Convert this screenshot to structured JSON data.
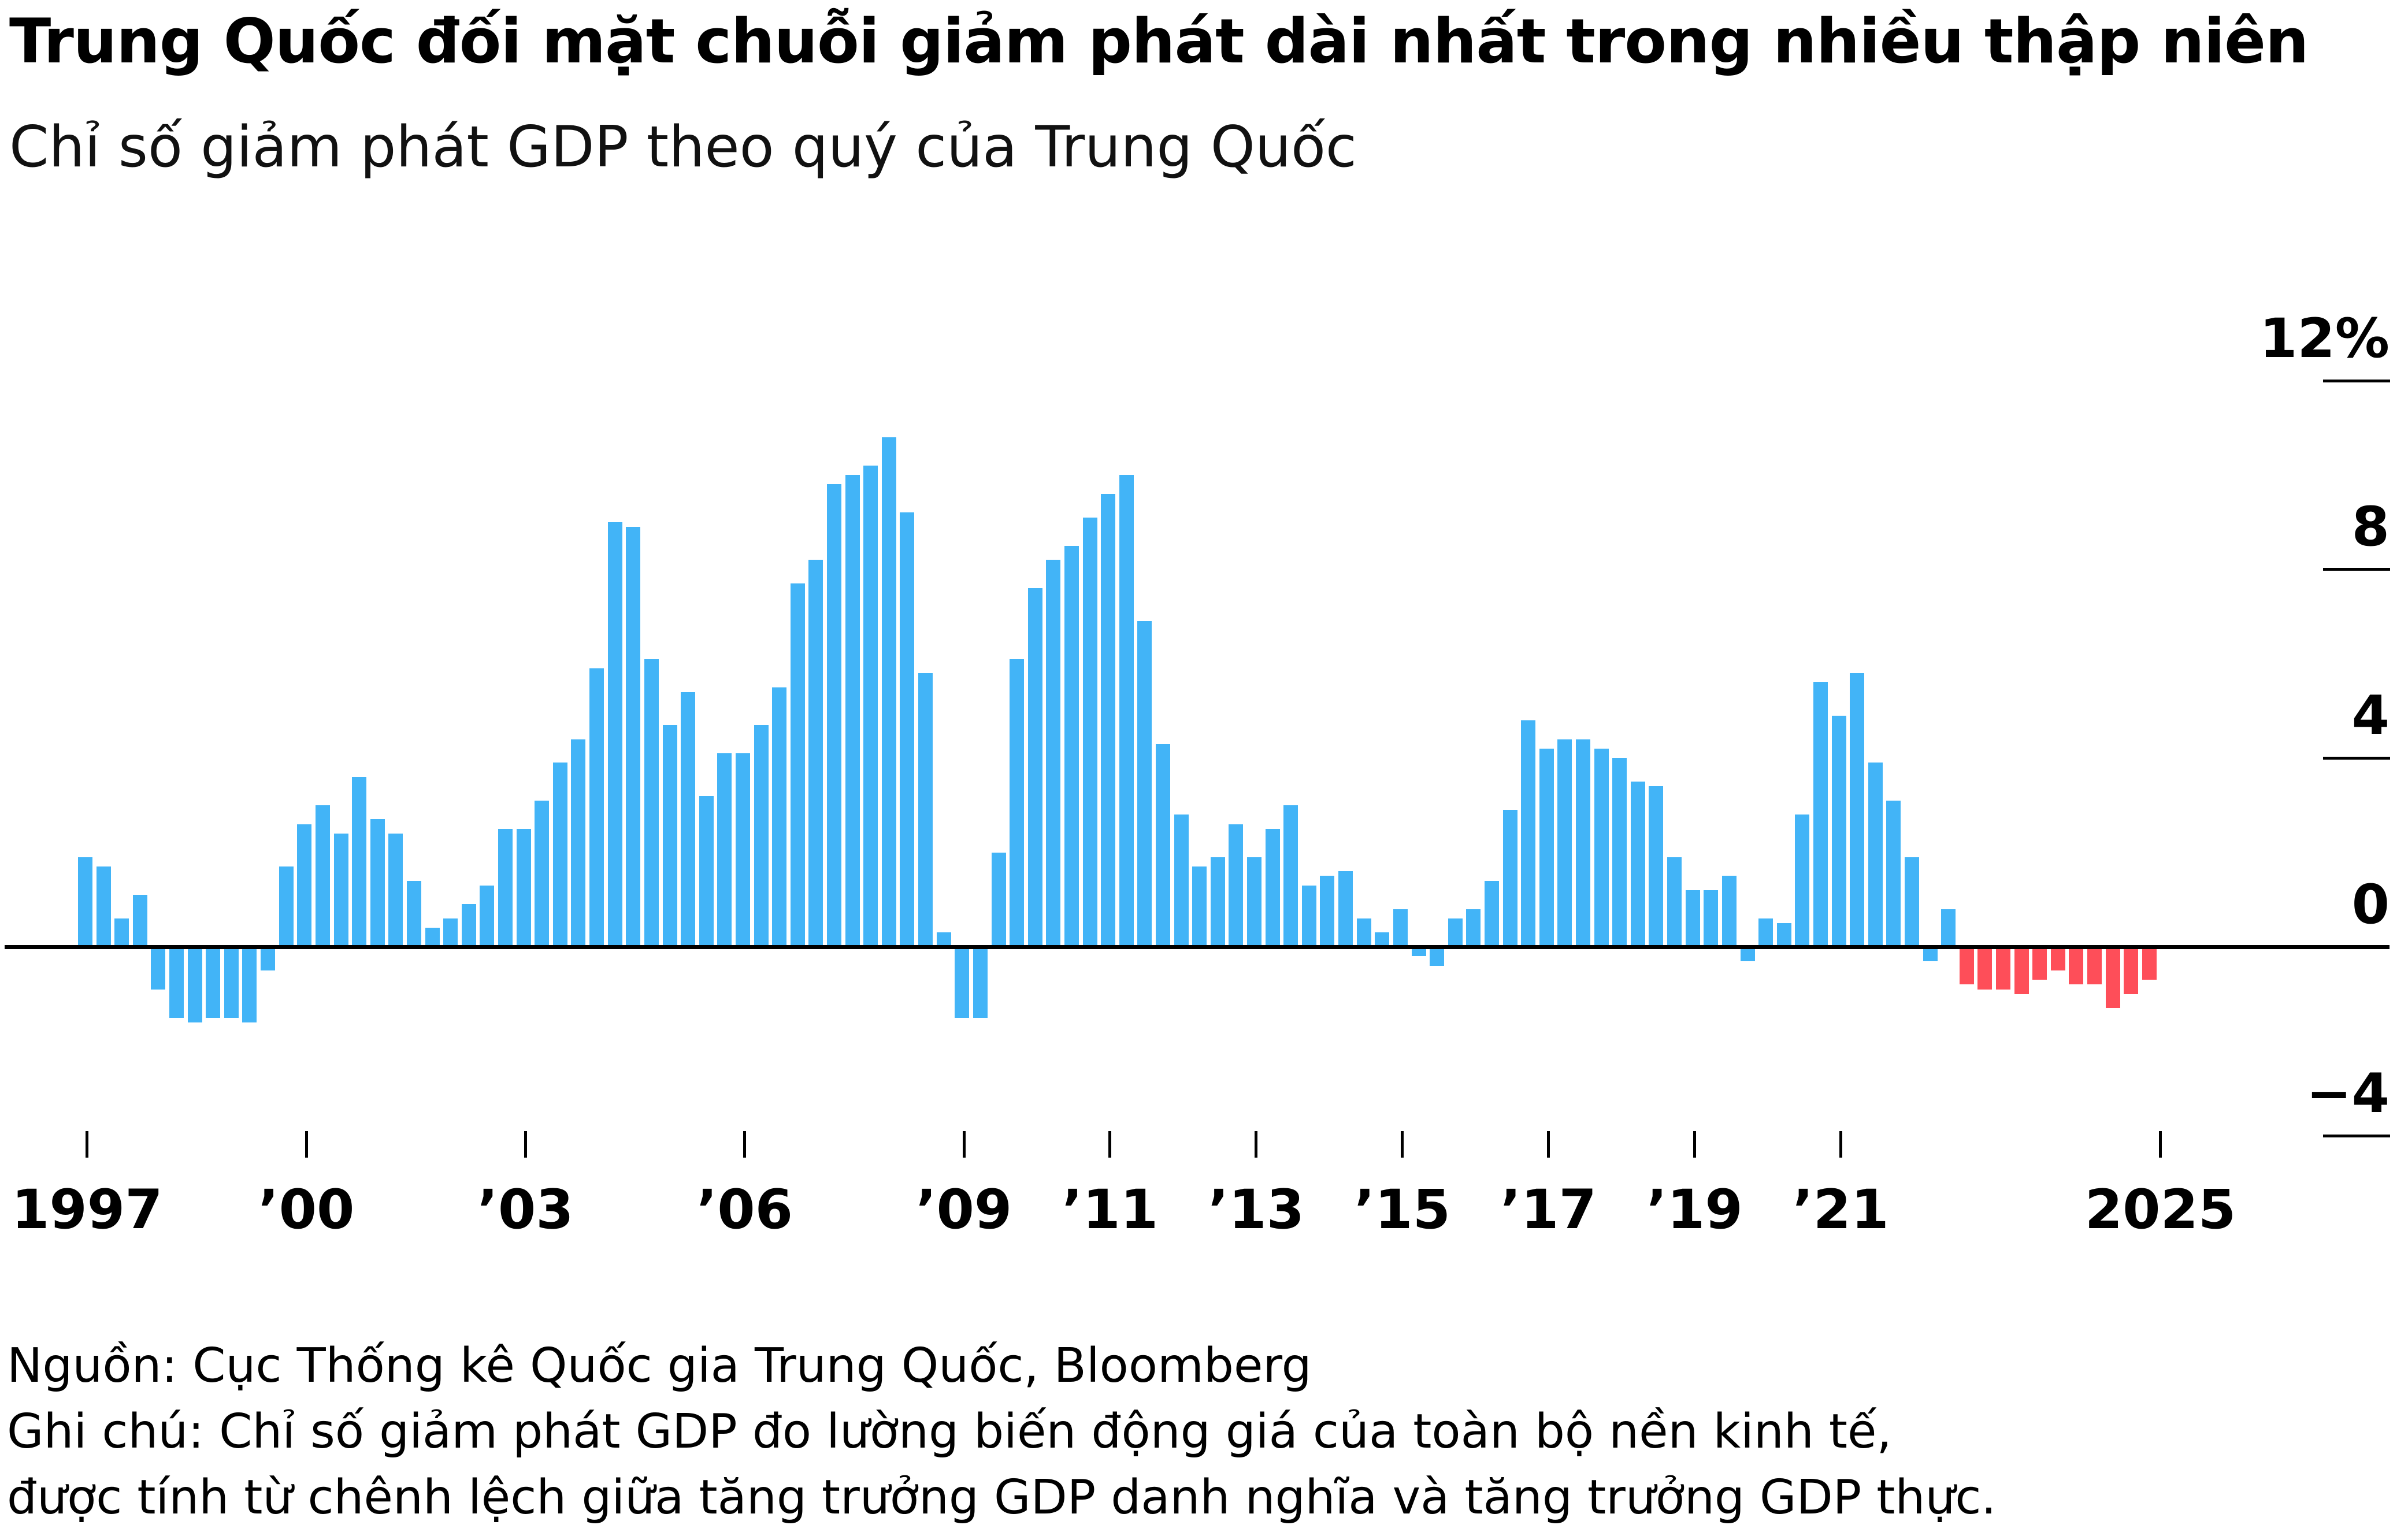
{
  "header": {
    "title": "Trung Quốc đối mặt chuỗi giảm phát dài nhất trong nhiều thập niên",
    "subtitle": "Chỉ số giảm phát GDP theo quý của Trung Quốc"
  },
  "footer": {
    "source": "Nguồn: Cục Thống kê Quốc gia Trung Quốc, Bloomberg",
    "note_line1": "Ghi chú: Chỉ số giảm phát GDP đo lường biến động giá của toàn bộ nền kinh tế,",
    "note_line2": "được tính từ chênh lệch giữa tăng trưởng GDP danh nghĩa và tăng trưởng GDP thực."
  },
  "chart_data": {
    "type": "bar",
    "title": "Trung Quốc đối mặt chuỗi giảm phát dài nhất trong nhiều thập niên",
    "subtitle": "Chỉ số giảm phát GDP theo quý của Trung Quốc",
    "unit": "%",
    "frequency": "quarterly",
    "start_quarter": "1997-Q1",
    "end_quarter": "2025-Q2",
    "ylim": [
      -4.5,
      13.5
    ],
    "legend": "none",
    "grid": "zero-line-only",
    "values": [
      1.9,
      1.7,
      0.6,
      1.1,
      -0.9,
      -1.5,
      -1.6,
      -1.5,
      -1.5,
      -1.6,
      -0.5,
      1.7,
      2.6,
      3.0,
      2.4,
      3.6,
      2.7,
      2.4,
      1.4,
      0.4,
      0.6,
      0.9,
      1.3,
      2.5,
      2.5,
      3.1,
      3.9,
      4.4,
      5.9,
      9.0,
      8.9,
      6.1,
      4.7,
      5.4,
      3.2,
      4.1,
      4.1,
      4.7,
      5.5,
      7.7,
      8.2,
      9.8,
      10.0,
      10.2,
      10.8,
      9.2,
      5.8,
      0.3,
      -1.5,
      -1.5,
      2.0,
      6.1,
      7.6,
      8.2,
      8.5,
      9.1,
      9.6,
      10.0,
      6.9,
      4.3,
      2.8,
      1.7,
      1.9,
      2.6,
      1.9,
      2.5,
      3.0,
      1.3,
      1.5,
      1.6,
      0.6,
      0.3,
      0.8,
      -0.2,
      -0.4,
      0.6,
      0.8,
      1.4,
      2.9,
      4.8,
      4.2,
      4.4,
      4.4,
      4.2,
      4.0,
      3.5,
      3.4,
      1.9,
      1.2,
      1.2,
      1.5,
      -0.3,
      0.6,
      0.5,
      2.8,
      5.6,
      4.9,
      5.8,
      3.9,
      3.1,
      1.9,
      -0.3,
      0.8,
      -0.8,
      -0.9,
      -0.9,
      -1.0,
      -0.7,
      -0.5,
      -0.8,
      -0.8,
      -1.3,
      -1.0,
      -0.7
    ],
    "deflation_streak_from_index": 103,
    "colors": {
      "positive_bar": "#42B4F7",
      "deflation_bar": "#FE4E59",
      "axis": "#000000",
      "background": "#FFFFFF"
    },
    "y_ticks": [
      {
        "label": "12%",
        "value": 12,
        "tick": true
      },
      {
        "label": "8",
        "value": 8,
        "tick": true
      },
      {
        "label": "4",
        "value": 4,
        "tick": true
      },
      {
        "label": "0",
        "value": 0,
        "tick": false
      },
      {
        "label": "−4",
        "value": -4,
        "tick": true
      }
    ],
    "x_ticks": [
      {
        "label": "1997",
        "quarter_index": 0
      },
      {
        "label": "’00",
        "quarter_index": 12
      },
      {
        "label": "’03",
        "quarter_index": 24
      },
      {
        "label": "’06",
        "quarter_index": 36
      },
      {
        "label": "’09",
        "quarter_index": 48
      },
      {
        "label": "’11",
        "quarter_index": 56
      },
      {
        "label": "’13",
        "quarter_index": 64
      },
      {
        "label": "’15",
        "quarter_index": 72
      },
      {
        "label": "’17",
        "quarter_index": 80
      },
      {
        "label": "’19",
        "quarter_index": 88
      },
      {
        "label": "’21",
        "quarter_index": 96
      },
      {
        "label": "2025",
        "quarter_index": 113.5
      }
    ]
  }
}
